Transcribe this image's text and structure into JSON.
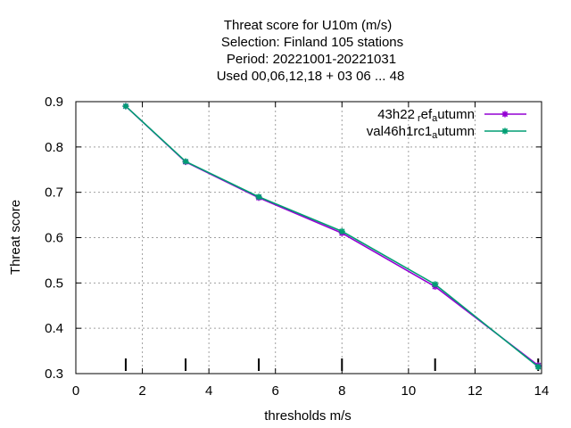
{
  "chart_data": {
    "type": "line",
    "title_lines": [
      "Threat score  for U10m (m/s)",
      "Selection: Finland    105 stations",
      "Period: 20221001-20221031",
      "Used  00,06,12,18  + 03 06 ... 48"
    ],
    "xlabel": "thresholds m/s",
    "ylabel": "Threat score",
    "xlim": [
      0,
      14
    ],
    "ylim": [
      0.3,
      0.9
    ],
    "x_ticks": [
      0,
      2,
      4,
      6,
      8,
      10,
      12,
      14
    ],
    "y_ticks": [
      0.3,
      0.4,
      0.5,
      0.6,
      0.7,
      0.8,
      0.9
    ],
    "x_tick_labels": [
      "0",
      "2",
      "4",
      "6",
      "8",
      "10",
      "12",
      "14"
    ],
    "y_tick_labels": [
      "0.3",
      "0.4",
      "0.5",
      "0.6",
      "0.7",
      "0.8",
      "0.9"
    ],
    "grid": true,
    "legend_position": "top-right",
    "threshold_markers": [
      1.5,
      3.3,
      5.5,
      8.0,
      10.8,
      13.9
    ],
    "series": [
      {
        "legend_main": "43h22",
        "legend_sub1": "r",
        "legend_mid": "ef",
        "legend_sub2": "a",
        "legend_end": "utumn",
        "color": "#9400d3",
        "x": [
          1.5,
          3.3,
          5.5,
          8.0,
          10.8,
          13.9
        ],
        "y": [
          0.89,
          0.767,
          0.688,
          0.61,
          0.492,
          0.318
        ]
      },
      {
        "legend_main": "val46h1rc1",
        "legend_sub1": "",
        "legend_mid": "",
        "legend_sub2": "a",
        "legend_end": "utumn",
        "color": "#009e73",
        "x": [
          1.5,
          3.3,
          5.5,
          8.0,
          10.8,
          13.9
        ],
        "y": [
          0.89,
          0.768,
          0.69,
          0.614,
          0.497,
          0.315
        ]
      }
    ]
  }
}
